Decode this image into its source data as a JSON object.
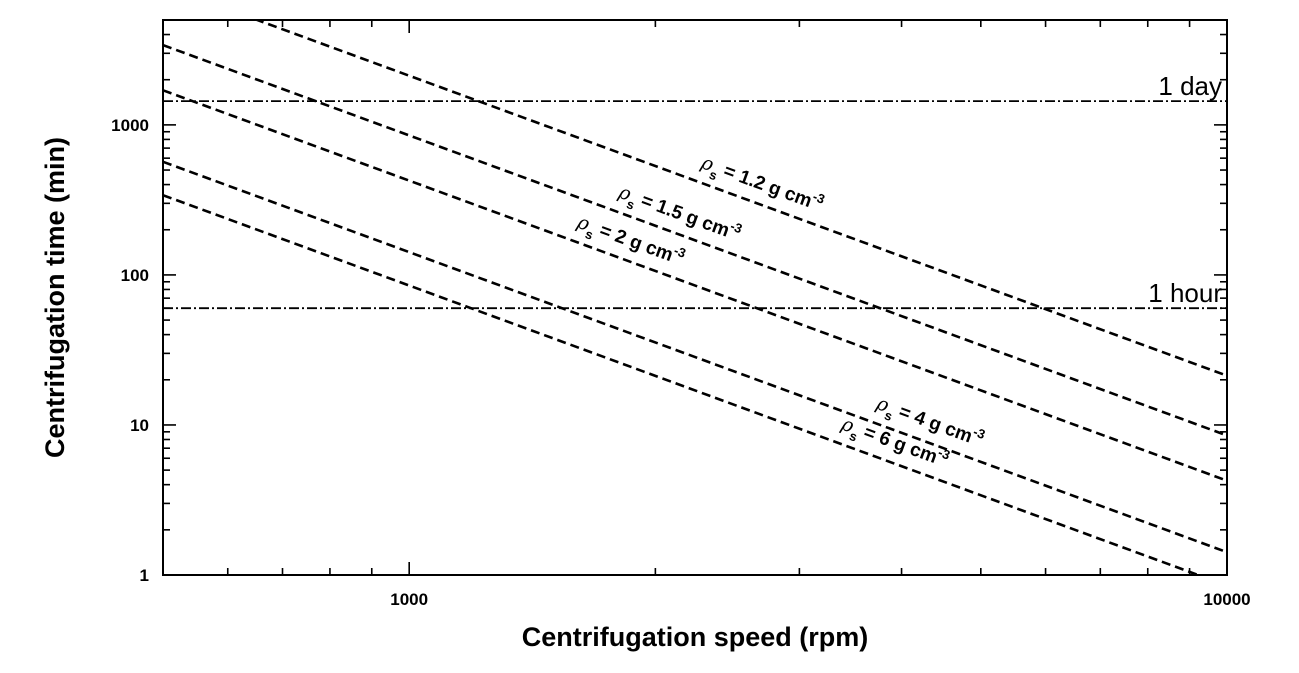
{
  "chart_data": {
    "type": "line",
    "title": "",
    "xlabel": "Centrifugation speed (rpm)",
    "ylabel": "Centrifugation time (min)",
    "x_scale": "log",
    "y_scale": "log",
    "xlim": [
      500,
      10000
    ],
    "ylim": [
      1,
      5000
    ],
    "x_ticks": [
      {
        "value": 1000,
        "label": "1000"
      },
      {
        "value": 10000,
        "label": "10000"
      }
    ],
    "y_ticks": [
      {
        "value": 1,
        "label": "1"
      },
      {
        "value": 10,
        "label": "10"
      },
      {
        "value": 100,
        "label": "100"
      },
      {
        "value": 1000,
        "label": "1000"
      }
    ],
    "grid": false,
    "legend": "none",
    "series": [
      {
        "name": "ρs = 1.2 g cm-3",
        "label_symbol": "ρ",
        "label_sub": "s",
        "label_text": " = 1.2 g cm",
        "label_sup": "-3",
        "style": "dashed",
        "x": [
          500,
          10000
        ],
        "y": [
          8500,
          21.3
        ]
      },
      {
        "name": "ρs = 1.5 g cm-3",
        "label_symbol": "ρ",
        "label_sub": "s",
        "label_text": " = 1.5 g cm",
        "label_sup": "-3",
        "style": "dashed",
        "x": [
          500,
          10000
        ],
        "y": [
          3400,
          8.5
        ]
      },
      {
        "name": "ρs = 2 g cm-3",
        "label_symbol": "ρ",
        "label_sub": "s",
        "label_text": " = 2 g cm",
        "label_sup": "-3",
        "style": "dashed",
        "x": [
          500,
          10000
        ],
        "y": [
          1700,
          4.25
        ]
      },
      {
        "name": "ρs = 4 g cm-3",
        "label_symbol": "ρ",
        "label_sub": "s",
        "label_text": " = 4 g cm",
        "label_sup": "-3",
        "style": "dashed",
        "x": [
          500,
          10000
        ],
        "y": [
          567,
          1.42
        ]
      },
      {
        "name": "ρs = 6 g cm-3",
        "label_symbol": "ρ",
        "label_sub": "s",
        "label_text": " = 6 g cm",
        "label_sup": "-3",
        "style": "dashed",
        "x": [
          500,
          10000
        ],
        "y": [
          340,
          0.85
        ]
      }
    ],
    "reference_lines": [
      {
        "label": "1 day",
        "y": 1440,
        "style": "dash-dot"
      },
      {
        "label": "1 hour",
        "y": 60,
        "style": "dash-dot"
      }
    ]
  }
}
